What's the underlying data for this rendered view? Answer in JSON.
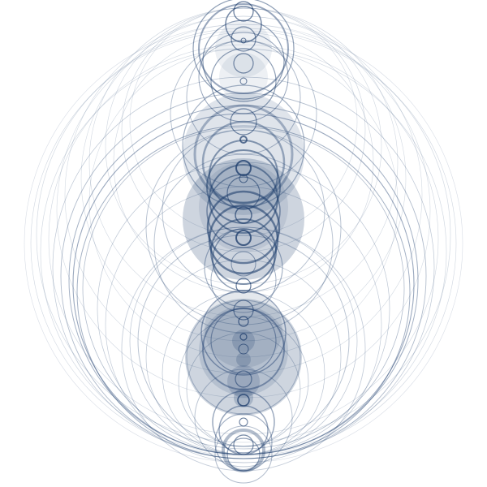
{
  "artwork": {
    "kind": "concentric-circle-pattern",
    "background_color": "#ffffff",
    "stroke_color": "#1f3f6e",
    "fill_color": "#1f3f6e",
    "icon": "circle-icon"
  }
}
